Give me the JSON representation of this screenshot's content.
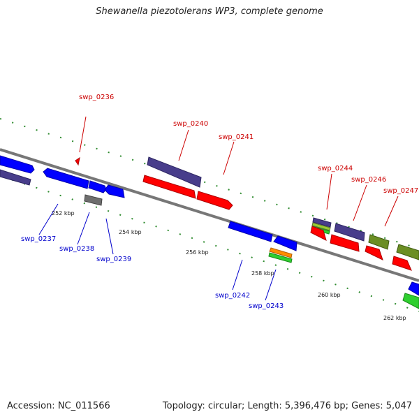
{
  "title": "Shewanella piezotolerans WP3, complete genome",
  "accession": "Accession: NC_011566",
  "summary": "Topology: circular; Length: 5,396,476 bp; Genes: 5,047",
  "colors": {
    "backbone": "#888888",
    "tick": "#2e8b2e",
    "label_top": "#cc0000",
    "label_bottom": "#0000cc",
    "blue": "#0000ff",
    "red": "#ff0000",
    "slate": "#483d8b",
    "gray": "#6e6e6e",
    "olive": "#6b8e23",
    "orange": "#ff8c00",
    "green": "#2fcf2f",
    "lime": "#9acd32"
  },
  "scale_labels": [
    "252 kbp",
    "254 kbp",
    "256 kbp",
    "258 kbp",
    "260 kbp",
    "262 kbp"
  ],
  "gene_labels": {
    "top": [
      "swp_0236",
      "swp_0240",
      "swp_0241",
      "swp_0244",
      "swp_0246",
      "swp_0247"
    ],
    "bottom": [
      "swp_0237",
      "swp_0238",
      "swp_0239",
      "swp_0242",
      "swp_0243"
    ]
  }
}
